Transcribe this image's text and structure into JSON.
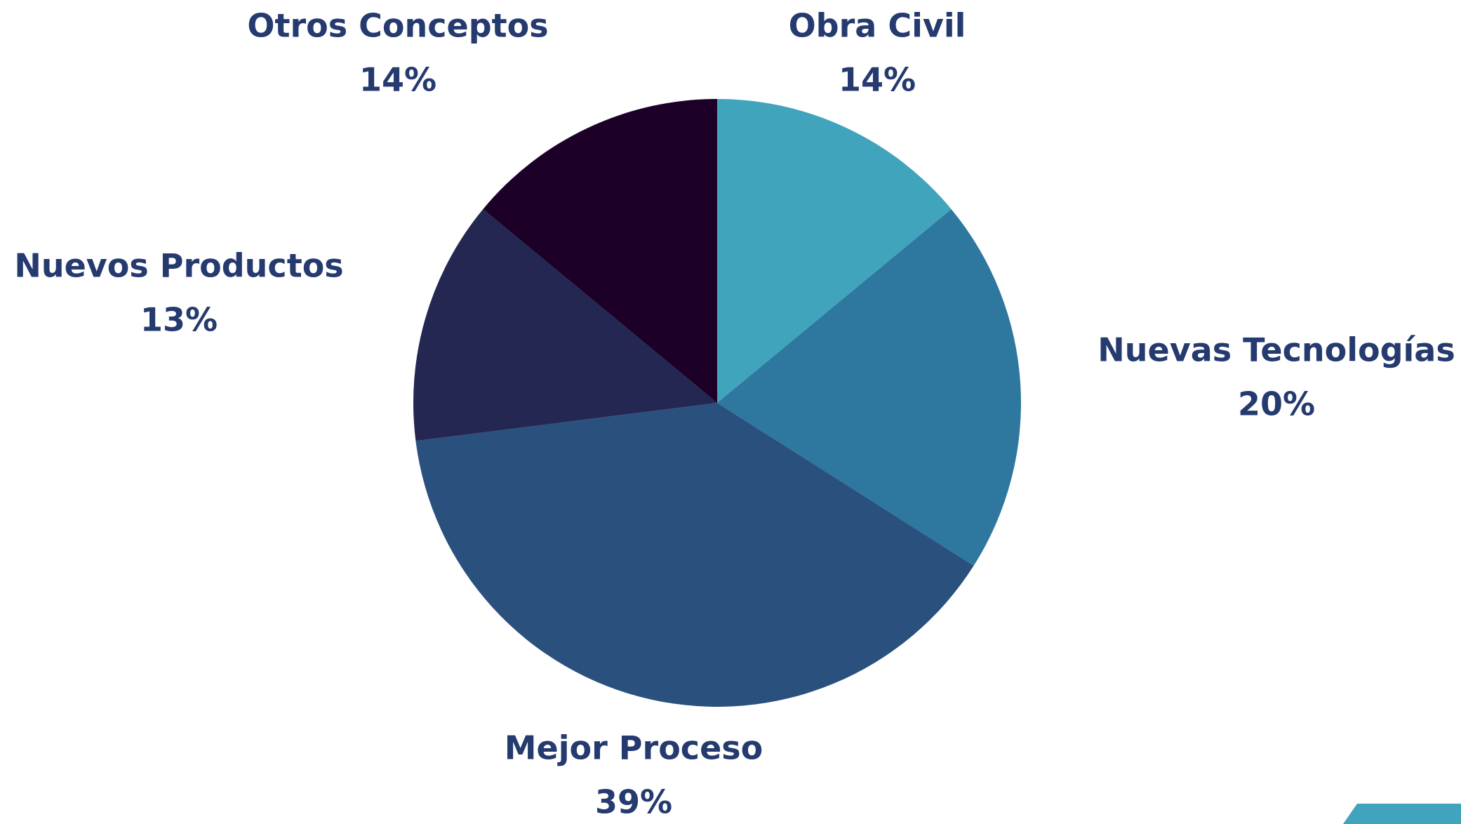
{
  "chart_data": {
    "type": "pie",
    "categories": [
      "Obra Civil",
      "Nuevas Tecnologías",
      "Mejor Proceso",
      "Nuevos Productos",
      "Otros Conceptos"
    ],
    "values": [
      14,
      20,
      39,
      13,
      14
    ],
    "value_labels": [
      "14%",
      "20%",
      "39%",
      "13%",
      "14%"
    ],
    "colors": [
      "#40a4bc",
      "#2e78a0",
      "#2a507e",
      "#242752",
      "#1c0028"
    ]
  }
}
